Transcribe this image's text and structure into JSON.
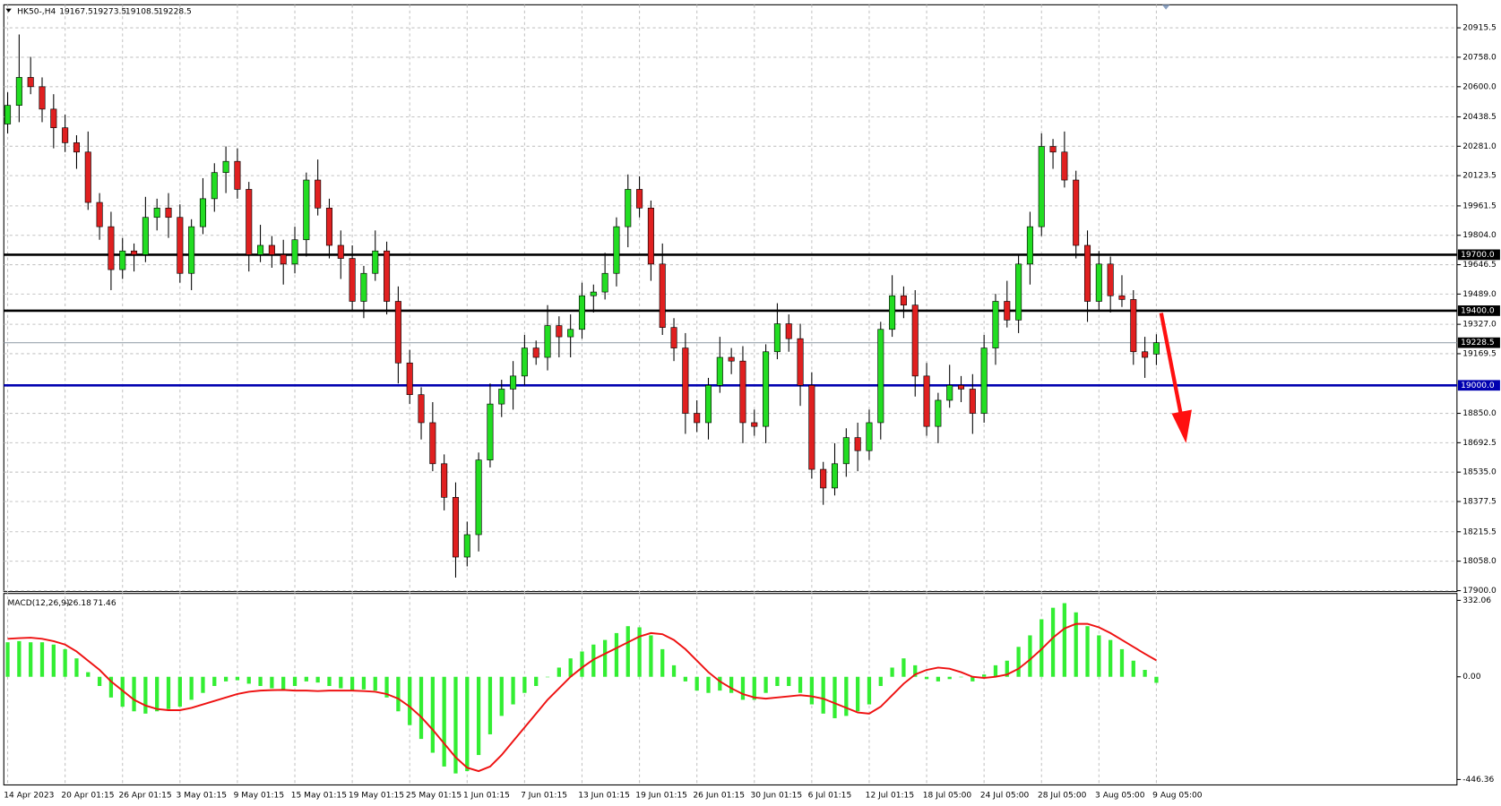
{
  "chart_data": [
    {
      "type": "candlestick",
      "symbol": "HK50-,H4",
      "categories": [
        "14 Apr 2023",
        null,
        null,
        null,
        null,
        "20 Apr 01:15",
        null,
        null,
        null,
        null,
        "26 Apr 01:15",
        null,
        null,
        null,
        null,
        "3 May 01:15",
        null,
        null,
        null,
        null,
        "9 May 01:15",
        null,
        null,
        null,
        null,
        "15 May 01:15",
        null,
        null,
        null,
        null,
        "19 May 01:15",
        null,
        null,
        null,
        null,
        "25 May 01:15",
        null,
        null,
        null,
        null,
        "1 Jun 01:15",
        null,
        null,
        null,
        null,
        "7 Jun 01:15",
        null,
        null,
        null,
        null,
        "13 Jun 01:15",
        null,
        null,
        null,
        null,
        "19 Jun 01:15",
        null,
        null,
        null,
        null,
        "26 Jun 01:15",
        null,
        null,
        null,
        null,
        "30 Jun 01:15",
        null,
        null,
        null,
        null,
        "6 Jul 01:15",
        null,
        null,
        null,
        null,
        "12 Jul 01:15",
        null,
        null,
        null,
        null,
        "18 Jul 05:00",
        null,
        null,
        null,
        null,
        "24 Jul 05:00",
        null,
        null,
        null,
        null,
        "28 Jul 05:00",
        null,
        null,
        null,
        null,
        "3 Aug 05:00",
        null,
        null,
        null,
        null,
        "9 Aug 05:00"
      ],
      "open": [
        20400,
        20500,
        20650,
        20600,
        20480,
        20380,
        20300,
        20250,
        19980,
        19850,
        19620,
        19720,
        19700,
        19900,
        19950,
        19900,
        19600,
        19850,
        20000,
        20140,
        20200,
        20050,
        19700,
        19750,
        19700,
        19650,
        19780,
        20100,
        19950,
        19750,
        19680,
        19450,
        19600,
        19720,
        19450,
        19120,
        18950,
        18800,
        18580,
        18400,
        18080,
        18200,
        18600,
        18900,
        18980,
        19050,
        19200,
        19150,
        19320,
        19260,
        19300,
        19480,
        19500,
        19600,
        19850,
        20050,
        19950,
        19650,
        19310,
        19200,
        18850,
        18800,
        19000,
        19150,
        19130,
        18800,
        18780,
        19180,
        19330,
        19250,
        19000,
        18550,
        18450,
        18580,
        18720,
        18650,
        18800,
        19300,
        19480,
        19430,
        19050,
        18780,
        18920,
        19000,
        18980,
        18850,
        19200,
        19450,
        19350,
        19650,
        19850,
        20280,
        20250,
        20100,
        19750,
        19450,
        19650,
        19480,
        19460,
        19180,
        19167.5
      ],
      "high": [
        20570,
        20880,
        20760,
        20650,
        20560,
        20450,
        20340,
        20360,
        20030,
        19930,
        19790,
        19760,
        20010,
        20000,
        20030,
        19970,
        19890,
        20110,
        20190,
        20280,
        20270,
        20090,
        19860,
        19800,
        19780,
        19850,
        20140,
        20210,
        20000,
        19830,
        19750,
        19640,
        19830,
        19770,
        19530,
        19190,
        18990,
        18910,
        18630,
        18480,
        18270,
        18640,
        19010,
        19030,
        19130,
        19270,
        19240,
        19430,
        19370,
        19380,
        19550,
        19540,
        19710,
        19900,
        20130,
        20120,
        19990,
        19760,
        19360,
        19280,
        18920,
        19040,
        19260,
        19200,
        19210,
        18870,
        19220,
        19440,
        19380,
        19330,
        19070,
        18590,
        18690,
        18770,
        18800,
        18870,
        19340,
        19590,
        19530,
        19510,
        19120,
        18960,
        19110,
        19050,
        19060,
        19270,
        19490,
        19560,
        19700,
        19930,
        20350,
        20320,
        20360,
        20150,
        19830,
        19720,
        19690,
        19590,
        19510,
        19260,
        19273.5
      ],
      "low": [
        20350,
        20410,
        20560,
        20410,
        20270,
        20250,
        20160,
        19940,
        19780,
        19510,
        19570,
        19610,
        19660,
        19830,
        19790,
        19550,
        19510,
        19810,
        19930,
        20030,
        20000,
        19610,
        19660,
        19630,
        19540,
        19600,
        19690,
        19910,
        19680,
        19570,
        19400,
        19360,
        19560,
        19380,
        19010,
        18900,
        18710,
        18540,
        18330,
        17970,
        18030,
        18110,
        18560,
        18830,
        18870,
        19000,
        19110,
        19080,
        19150,
        19150,
        19250,
        19390,
        19460,
        19530,
        19740,
        19900,
        19560,
        19270,
        19130,
        18740,
        18750,
        18710,
        18960,
        19060,
        18690,
        18730,
        18690,
        19140,
        19180,
        18890,
        18500,
        18360,
        18410,
        18510,
        18540,
        18600,
        18710,
        19260,
        19360,
        18940,
        18730,
        18690,
        18880,
        18910,
        18740,
        18800,
        19110,
        19310,
        19280,
        19540,
        19800,
        20160,
        20060,
        19680,
        19340,
        19400,
        19390,
        19420,
        19110,
        19040,
        19108.5
      ],
      "close": [
        20500,
        20650,
        20600,
        20480,
        20380,
        20300,
        20250,
        19980,
        19850,
        19620,
        19720,
        19700,
        19900,
        19950,
        19900,
        19600,
        19850,
        20000,
        20140,
        20200,
        20050,
        19700,
        19750,
        19700,
        19650,
        19780,
        20100,
        19950,
        19750,
        19680,
        19450,
        19600,
        19720,
        19450,
        19120,
        18950,
        18800,
        18580,
        18400,
        18080,
        18200,
        18600,
        18900,
        18980,
        19050,
        19200,
        19150,
        19320,
        19260,
        19300,
        19480,
        19500,
        19600,
        19850,
        20050,
        19950,
        19650,
        19310,
        19200,
        18850,
        18800,
        19000,
        19150,
        19130,
        18800,
        18780,
        19180,
        19330,
        19250,
        19000,
        18550,
        18450,
        18580,
        18720,
        18650,
        18800,
        19300,
        19480,
        19430,
        19050,
        18780,
        18920,
        19000,
        18980,
        18850,
        19200,
        19450,
        19350,
        19650,
        19850,
        20280,
        20250,
        20100,
        19750,
        19450,
        19650,
        19480,
        19460,
        19180,
        19150,
        19228.5
      ],
      "up_color": "#22dd22",
      "down_color": "#e02020",
      "ylim": [
        17895,
        21039
      ],
      "yticks": [
        20915.5,
        {
          "value": 20758,
          "label": "20758.0"
        },
        {
          "value": 20600,
          "label": "20600.0"
        },
        20438.5,
        {
          "value": 20281,
          "label": "20281.0"
        },
        20123.5,
        19961.5,
        {
          "value": 19804,
          "label": "19804.0"
        },
        19646.5,
        {
          "value": 19489,
          "label": "19489.0"
        },
        {
          "value": 19327,
          "label": "19327.0"
        },
        19169.5,
        {
          "value": 18850,
          "label": "18850.0"
        },
        18692.5,
        {
          "value": 18535,
          "label": "18535.0"
        },
        18377.5,
        18215.5,
        {
          "value": 18058,
          "label": "18058.0"
        },
        {
          "value": 17900,
          "label": "17900.0"
        }
      ],
      "levels": [
        {
          "value": 19700,
          "label": "19700.0",
          "color": "#000000"
        },
        {
          "value": 19400,
          "label": "19400.0",
          "color": "#000000"
        },
        {
          "value": 19000,
          "label": "19000.0",
          "color": "#0000b0"
        }
      ],
      "grid": true
    },
    {
      "type": "macd",
      "title": "MACD(12,26,9)",
      "histogram": [
        150,
        155,
        150,
        150,
        140,
        120,
        80,
        20,
        -40,
        -90,
        -130,
        -150,
        -160,
        -150,
        -140,
        -130,
        -100,
        -70,
        -40,
        -20,
        -15,
        -30,
        -40,
        -50,
        -55,
        -40,
        -20,
        -25,
        -40,
        -50,
        -60,
        -55,
        -60,
        -90,
        -150,
        -210,
        -270,
        -330,
        -390,
        -420,
        -410,
        -340,
        -250,
        -170,
        -120,
        -70,
        -40,
        0,
        40,
        80,
        110,
        140,
        160,
        190,
        220,
        215,
        180,
        120,
        50,
        -20,
        -60,
        -70,
        -60,
        -70,
        -100,
        -100,
        -70,
        -40,
        -40,
        -70,
        -120,
        -160,
        -180,
        -170,
        -150,
        -120,
        -40,
        40,
        80,
        50,
        -10,
        -20,
        -10,
        0,
        -20,
        10,
        50,
        70,
        130,
        180,
        250,
        300,
        320,
        280,
        220,
        180,
        160,
        120,
        70,
        30,
        -26.18
      ],
      "signal": [
        165,
        168,
        170,
        165,
        155,
        140,
        110,
        70,
        30,
        -20,
        -60,
        -100,
        -125,
        -140,
        -145,
        -145,
        -135,
        -120,
        -105,
        -90,
        -75,
        -65,
        -60,
        -58,
        -57,
        -60,
        -60,
        -62,
        -60,
        -60,
        -60,
        -62,
        -65,
        -75,
        -95,
        -130,
        -175,
        -230,
        -290,
        -350,
        -395,
        -410,
        -390,
        -340,
        -280,
        -220,
        -160,
        -100,
        -50,
        0,
        40,
        75,
        100,
        125,
        150,
        175,
        190,
        185,
        160,
        120,
        70,
        20,
        -20,
        -50,
        -75,
        -90,
        -95,
        -90,
        -85,
        -80,
        -85,
        -95,
        -115,
        -135,
        -155,
        -160,
        -130,
        -80,
        -30,
        10,
        30,
        40,
        35,
        20,
        0,
        -5,
        0,
        10,
        35,
        75,
        120,
        170,
        210,
        230,
        230,
        215,
        190,
        160,
        130,
        100,
        71.46
      ],
      "hist_color": "#33ee33",
      "signal_color": "#ee1111",
      "ylim": [
        -470,
        362
      ],
      "yticks": [
        332.06,
        {
          "value": 0,
          "label": "0.00"
        },
        -446.36
      ]
    }
  ]
}
